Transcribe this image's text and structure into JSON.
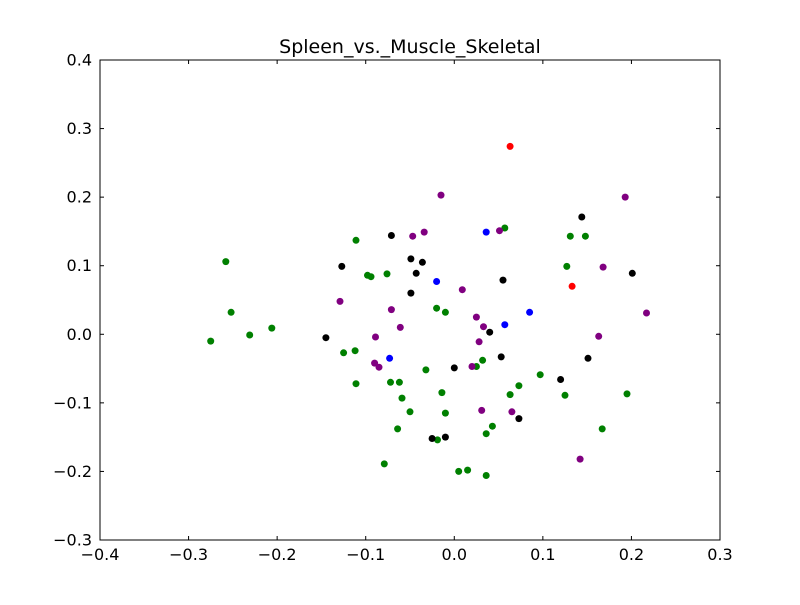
{
  "chart_data": {
    "type": "scatter",
    "title": "Spleen_vs._Muscle_Skeletal",
    "xlabel": "",
    "ylabel": "",
    "xlim": [
      -0.4,
      0.3
    ],
    "ylim": [
      -0.3,
      0.4
    ],
    "grid": false,
    "xticks": [
      {
        "value": -0.4,
        "label": "−0.4"
      },
      {
        "value": -0.3,
        "label": "−0.3"
      },
      {
        "value": -0.2,
        "label": "−0.2"
      },
      {
        "value": -0.1,
        "label": "−0.1"
      },
      {
        "value": 0.0,
        "label": "0.0"
      },
      {
        "value": 0.1,
        "label": "0.1"
      },
      {
        "value": 0.2,
        "label": "0.2"
      },
      {
        "value": 0.3,
        "label": "0.3"
      }
    ],
    "yticks": [
      {
        "value": -0.3,
        "label": "−0.3"
      },
      {
        "value": -0.2,
        "label": "−0.2"
      },
      {
        "value": -0.1,
        "label": "−0.1"
      },
      {
        "value": 0.0,
        "label": "0.0"
      },
      {
        "value": 0.1,
        "label": "0.1"
      },
      {
        "value": 0.2,
        "label": "0.2"
      },
      {
        "value": 0.3,
        "label": "0.3"
      },
      {
        "value": 0.4,
        "label": "0.4"
      }
    ],
    "series": [
      {
        "color": "#008000",
        "points": [
          [
            -0.275,
            -0.01
          ],
          [
            -0.258,
            0.106
          ],
          [
            -0.252,
            0.032
          ],
          [
            -0.231,
            -0.001
          ],
          [
            -0.206,
            0.009
          ],
          [
            -0.111,
            0.137
          ],
          [
            -0.112,
            -0.024
          ],
          [
            -0.111,
            -0.072
          ],
          [
            -0.125,
            -0.027
          ],
          [
            -0.098,
            0.086
          ],
          [
            -0.094,
            0.084
          ],
          [
            -0.076,
            0.088
          ],
          [
            -0.079,
            -0.189
          ],
          [
            -0.072,
            -0.07
          ],
          [
            -0.062,
            -0.07
          ],
          [
            -0.059,
            -0.093
          ],
          [
            -0.064,
            -0.138
          ],
          [
            -0.05,
            -0.113
          ],
          [
            -0.032,
            -0.052
          ],
          [
            -0.02,
            0.038
          ],
          [
            -0.01,
            0.032
          ],
          [
            -0.014,
            -0.085
          ],
          [
            -0.01,
            -0.115
          ],
          [
            -0.019,
            -0.154
          ],
          [
            0.005,
            -0.2
          ],
          [
            0.015,
            -0.198
          ],
          [
            0.025,
            -0.047
          ],
          [
            0.032,
            -0.038
          ],
          [
            0.036,
            -0.145
          ],
          [
            0.036,
            -0.206
          ],
          [
            0.043,
            -0.134
          ],
          [
            0.057,
            0.155
          ],
          [
            0.063,
            -0.088
          ],
          [
            0.073,
            -0.075
          ],
          [
            0.097,
            -0.059
          ],
          [
            0.125,
            -0.089
          ],
          [
            0.127,
            0.099
          ],
          [
            0.131,
            0.143
          ],
          [
            0.148,
            0.143
          ],
          [
            0.167,
            -0.138
          ],
          [
            0.195,
            -0.087
          ]
        ]
      },
      {
        "color": "#800080",
        "points": [
          [
            -0.129,
            0.048
          ],
          [
            -0.09,
            -0.042
          ],
          [
            -0.089,
            -0.004
          ],
          [
            -0.085,
            -0.048
          ],
          [
            -0.071,
            0.036
          ],
          [
            -0.061,
            0.01
          ],
          [
            -0.047,
            0.143
          ],
          [
            -0.034,
            0.149
          ],
          [
            -0.015,
            0.203
          ],
          [
            0.009,
            0.065
          ],
          [
            0.025,
            0.025
          ],
          [
            0.028,
            -0.011
          ],
          [
            0.031,
            -0.111
          ],
          [
            0.033,
            0.011
          ],
          [
            0.02,
            -0.047
          ],
          [
            0.051,
            0.151
          ],
          [
            0.065,
            -0.113
          ],
          [
            0.142,
            -0.182
          ],
          [
            0.163,
            -0.003
          ],
          [
            0.168,
            0.098
          ],
          [
            0.193,
            0.2
          ],
          [
            0.217,
            0.031
          ]
        ]
      },
      {
        "color": "#000000",
        "points": [
          [
            -0.145,
            -0.005
          ],
          [
            -0.127,
            0.099
          ],
          [
            -0.071,
            0.144
          ],
          [
            -0.049,
            0.06
          ],
          [
            -0.049,
            0.11
          ],
          [
            -0.043,
            0.089
          ],
          [
            -0.036,
            0.105
          ],
          [
            -0.025,
            -0.152
          ],
          [
            -0.01,
            -0.15
          ],
          [
            0.0,
            -0.049
          ],
          [
            0.04,
            0.003
          ],
          [
            0.053,
            -0.033
          ],
          [
            0.055,
            0.079
          ],
          [
            0.073,
            -0.123
          ],
          [
            0.12,
            -0.066
          ],
          [
            0.144,
            0.171
          ],
          [
            0.151,
            -0.035
          ],
          [
            0.201,
            0.089
          ]
        ]
      },
      {
        "color": "#0000ff",
        "points": [
          [
            -0.073,
            -0.035
          ],
          [
            -0.02,
            0.077
          ],
          [
            0.036,
            0.149
          ],
          [
            0.057,
            0.014
          ],
          [
            0.085,
            0.032
          ]
        ]
      },
      {
        "color": "#ff0000",
        "points": [
          [
            0.063,
            0.274
          ],
          [
            0.133,
            0.07
          ]
        ]
      }
    ]
  }
}
